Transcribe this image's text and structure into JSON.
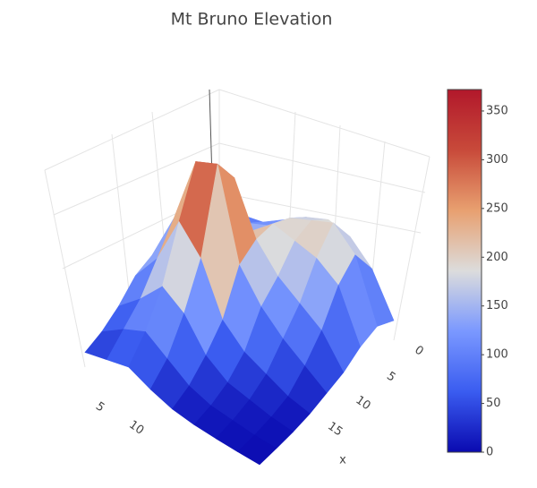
{
  "chart_data": {
    "type": "surface",
    "title": "Mt Bruno Elevation",
    "x": [
      0,
      3,
      6,
      9,
      12,
      15,
      18,
      21,
      24
    ],
    "y": [
      0,
      3,
      6,
      9,
      12,
      15,
      18,
      21,
      24
    ],
    "z": [
      [
        60,
        80,
        90,
        120,
        150,
        170,
        160,
        120,
        40
      ],
      [
        70,
        100,
        120,
        140,
        180,
        200,
        220,
        180,
        60
      ],
      [
        80,
        120,
        150,
        160,
        200,
        190,
        180,
        150,
        50
      ],
      [
        90,
        180,
        250,
        300,
        200,
        150,
        120,
        90,
        30
      ],
      [
        100,
        200,
        340,
        360,
        180,
        120,
        80,
        50,
        20
      ],
      [
        90,
        150,
        250,
        200,
        100,
        60,
        40,
        20,
        10
      ],
      [
        60,
        100,
        150,
        120,
        60,
        30,
        20,
        10,
        5
      ],
      [
        40,
        70,
        90,
        60,
        30,
        15,
        10,
        5,
        3
      ],
      [
        30,
        40,
        50,
        30,
        15,
        8,
        5,
        3,
        2
      ]
    ],
    "xlabel": "x",
    "xticks": [
      0,
      5,
      10,
      15
    ],
    "yticks": [
      5,
      10
    ],
    "colorscale": [
      "#0a0ab0",
      "#3a5cf0",
      "#7a98ff",
      "#dcdcdc",
      "#e8a070",
      "#c84a3a",
      "#b2182b"
    ],
    "colorbar": {
      "range": [
        0,
        372
      ],
      "ticks": [
        0,
        50,
        100,
        150,
        200,
        250,
        300,
        350
      ]
    }
  }
}
